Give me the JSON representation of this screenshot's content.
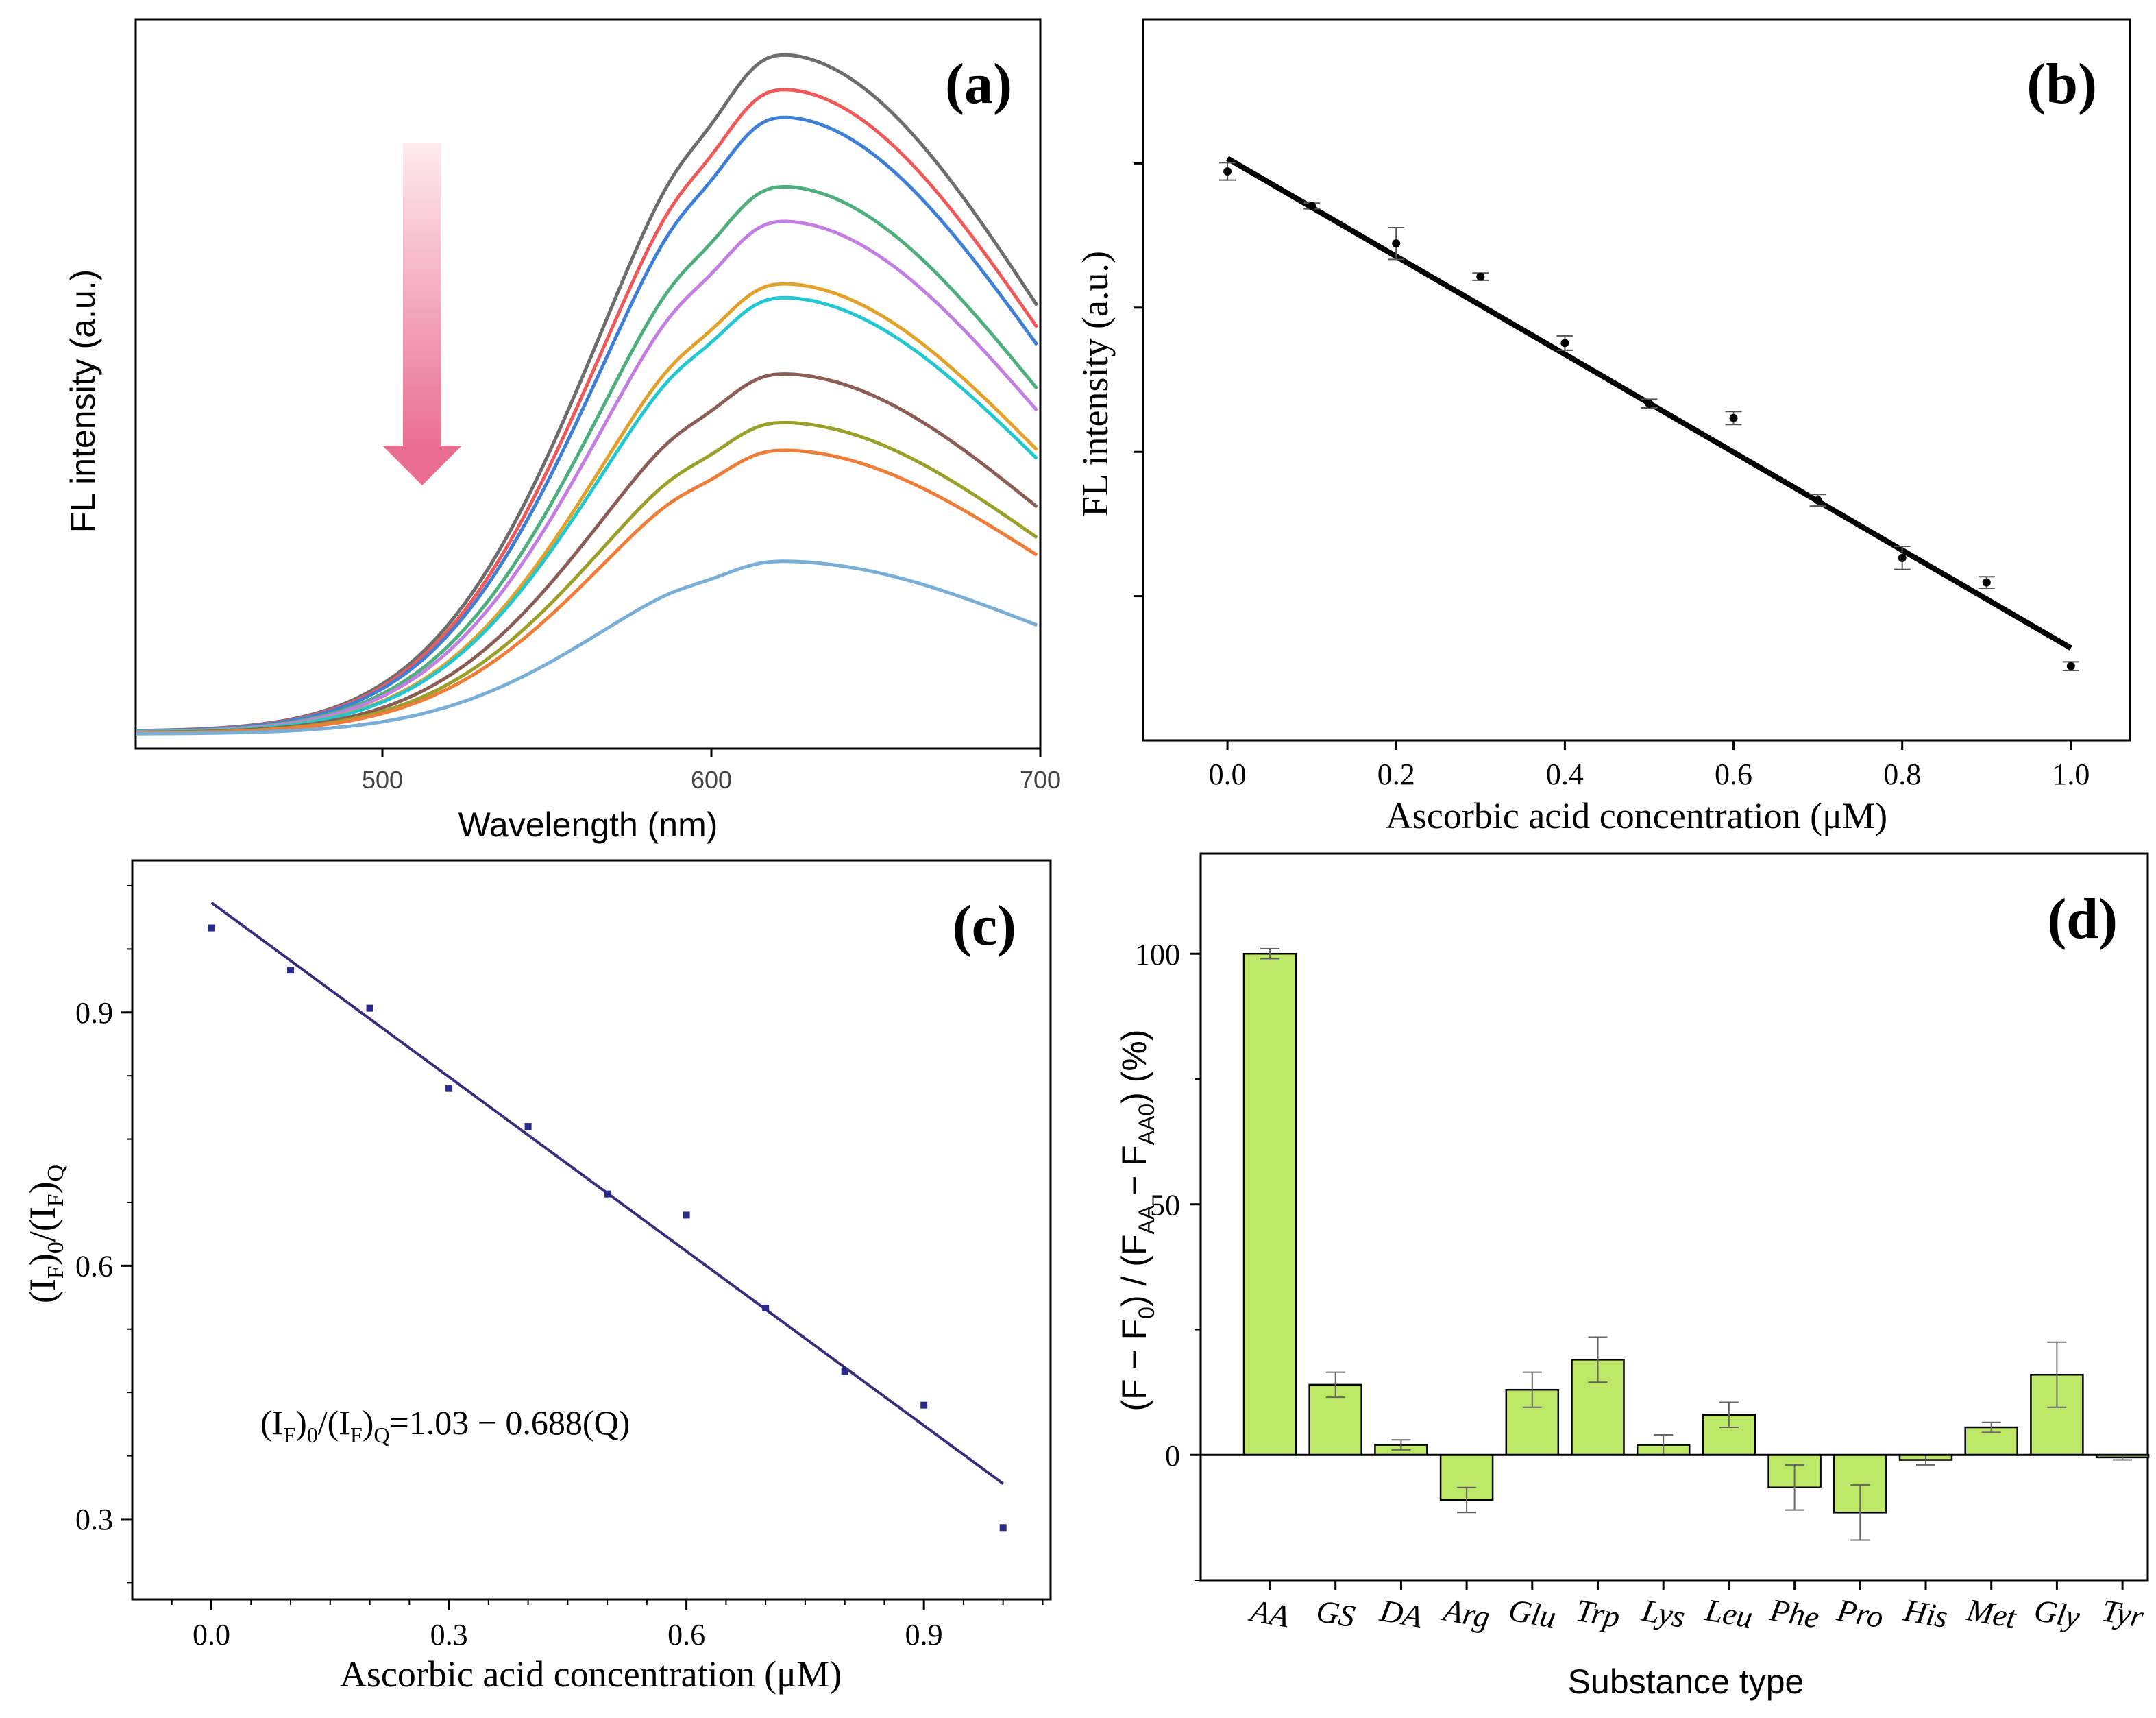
{
  "chart_data": [
    {
      "id": "a",
      "type": "line",
      "panel_label": "(a)",
      "xlabel": "Wavelength (nm)",
      "ylabel": "FL intensity (a.u.)",
      "xlim": [
        425,
        700
      ],
      "ylim": [
        0,
        105
      ],
      "xticks": [
        500,
        600,
        700
      ],
      "grid": false,
      "annotation": "downward arrow: intensity decreases with added ascorbic acid",
      "curve_model": "skewed peak, baseline 2 to 4, peak near 620 nm",
      "series": [
        {
          "name": "curve-1",
          "peak": 100,
          "color": "#6d6d6d"
        },
        {
          "name": "curve-2",
          "peak": 95,
          "color": "#ee5a5a"
        },
        {
          "name": "curve-3",
          "peak": 91,
          "color": "#3f7fd6"
        },
        {
          "name": "curve-4",
          "peak": 81,
          "color": "#4fae7e"
        },
        {
          "name": "curve-5",
          "peak": 76,
          "color": "#c27ee0"
        },
        {
          "name": "curve-6",
          "peak": 67,
          "color": "#e2a12a"
        },
        {
          "name": "curve-7",
          "peak": 65,
          "color": "#22c7cf"
        },
        {
          "name": "curve-8",
          "peak": 54,
          "color": "#8b5e55"
        },
        {
          "name": "curve-9",
          "peak": 47,
          "color": "#9aa02a"
        },
        {
          "name": "curve-10",
          "peak": 43,
          "color": "#ef7d3a"
        },
        {
          "name": "curve-11",
          "peak": 27,
          "color": "#79aed6"
        }
      ]
    },
    {
      "id": "b",
      "type": "scatter",
      "panel_label": "(b)",
      "xlabel": "Ascorbic acid concentration (μM)",
      "ylabel": "FL intensity (a.u.)",
      "xlim": [
        -0.1,
        1.07
      ],
      "ylim": [
        0,
        100
      ],
      "xticks": [
        "0.0",
        "0.2",
        "0.4",
        "0.6",
        "0.8",
        "1.0"
      ],
      "yticks": [
        20,
        40,
        60,
        80
      ],
      "ytick_labels_shown": false,
      "grid": false,
      "x": [
        0.0,
        0.1,
        0.2,
        0.3,
        0.4,
        0.5,
        0.6,
        0.7,
        0.8,
        0.9,
        1.0
      ],
      "y": [
        78.9,
        74.1,
        68.9,
        64.3,
        55.1,
        46.7,
        44.7,
        33.3,
        25.3,
        21.9,
        10.3
      ],
      "yerr": [
        1.2,
        0.4,
        2.2,
        0.5,
        1.0,
        0.6,
        0.9,
        0.8,
        1.6,
        0.8,
        0.6
      ],
      "fit": {
        "x0": 0.0,
        "y0": 80.7,
        "x1": 1.0,
        "y1": 12.8
      }
    },
    {
      "id": "c",
      "type": "scatter",
      "panel_label": "(c)",
      "xlabel": "Ascorbic acid concentration (μM)",
      "ylabel": "(IF)0/(IF)Q",
      "xlim": [
        -0.1,
        1.06
      ],
      "ylim": [
        0.205,
        1.08
      ],
      "xticks": [
        "0.0",
        "0.3",
        "0.6",
        "0.9"
      ],
      "yticks": [
        "0.3",
        "0.6",
        "0.9"
      ],
      "grid": false,
      "x": [
        0.0,
        0.1,
        0.2,
        0.3,
        0.4,
        0.5,
        0.6,
        0.7,
        0.8,
        0.9,
        1.0
      ],
      "y": [
        1.0,
        0.95,
        0.905,
        0.81,
        0.765,
        0.685,
        0.66,
        0.55,
        0.475,
        0.435,
        0.29
      ],
      "fit": {
        "intercept": 1.03,
        "slope": -0.688
      },
      "equation": {
        "lhs_a": "(I",
        "sub_f1": "F",
        "lhs_b": ")",
        "sub_0": "0",
        "slash": "/(I",
        "sub_f2": "F",
        "lhs_c": ")",
        "sub_q": "Q",
        "rhs": "=1.03 − 0.688(Q)"
      }
    },
    {
      "id": "d",
      "type": "bar",
      "panel_label": "(d)",
      "xlabel": "Substance type",
      "ylabel": "(F − F0) / (FAA − FAA0) (%)",
      "ylim": [
        -25,
        120
      ],
      "yticks": [
        0,
        50,
        100
      ],
      "grid": false,
      "bar_color": "#bde767",
      "categories": [
        "AA",
        "GS",
        "DA",
        "Arg",
        "Glu",
        "Trp",
        "Lys",
        "Leu",
        "Phe",
        "Pro",
        "His",
        "Met",
        "Gly",
        "Tyr"
      ],
      "values": [
        100,
        14,
        2,
        -9,
        13,
        19,
        2,
        8,
        -6.5,
        -11.5,
        -1,
        5.5,
        16,
        -0.5
      ],
      "errors": [
        1,
        2.5,
        1,
        2.5,
        3.5,
        4.5,
        2,
        2.5,
        4.5,
        5.5,
        1,
        1,
        6.5,
        0.5
      ]
    }
  ]
}
